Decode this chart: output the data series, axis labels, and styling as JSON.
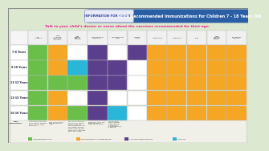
{
  "title": "2019 Recommended Immunizations for Children 7 - 18 Years Old",
  "info_label": "INFORMATION FOR PARENTS",
  "subtitle": "Talk to your child’s doctor or nurse about the vaccines recommended for their age.",
  "bg_color": "#dde8d0",
  "header_bg": "#2b5fa5",
  "info_bg": "#e8eaf6",
  "subtitle_color": "#e91e8c",
  "age_rows": [
    "7-8 Years",
    "9-10 Years",
    "11-12 Years",
    "13-15 Years",
    "16-18 Years"
  ],
  "col_headers": [
    "Flu\nInfluenza",
    "Tdap\nTetanus,\ndiphtheria,\npertussis",
    "HPV\nHuman\npapillo-\nmavirus",
    "Meningococcal\nMenACWY",
    "Meningococcal\nMenB",
    "Pneumo-\ncoccal",
    "Hepatitis B",
    "Hepatitis A",
    "Polio",
    "MMR\nMeasles,\nmumps,\nrubella",
    "Chickenpox\nVaricella"
  ],
  "green": "#6abf4b",
  "orange": "#f5a623",
  "purple": "#5b3f8c",
  "cyan": "#29b6d8",
  "white": "#ffffff",
  "cell_colors": [
    [
      "green",
      "orange",
      "white",
      "purple",
      "white",
      "purple",
      "orange",
      "orange",
      "orange",
      "orange",
      "orange"
    ],
    [
      "green",
      "orange",
      "cyan",
      "purple",
      "purple",
      "white",
      "orange",
      "orange",
      "orange",
      "orange",
      "orange"
    ],
    [
      "green",
      "green",
      "green",
      "purple",
      "purple",
      "white",
      "orange",
      "orange",
      "orange",
      "orange",
      "orange"
    ],
    [
      "green",
      "orange",
      "white",
      "purple",
      "white",
      "white",
      "orange",
      "orange",
      "orange",
      "orange",
      "orange"
    ],
    [
      "green",
      "orange",
      "green",
      "purple",
      "cyan",
      "white",
      "orange",
      "orange",
      "orange",
      "orange",
      "orange"
    ]
  ],
  "notes_bg": "#f0f0e8",
  "legend": [
    {
      "color": "#6abf4b",
      "label": "Recommended for all"
    },
    {
      "color": "#f5a623",
      "label": "Recommended for certain groups"
    },
    {
      "color": "#5b3f8c",
      "label": "2 recommended vaccines"
    },
    {
      "color": "#29b6d8",
      "label": "catch up"
    }
  ]
}
